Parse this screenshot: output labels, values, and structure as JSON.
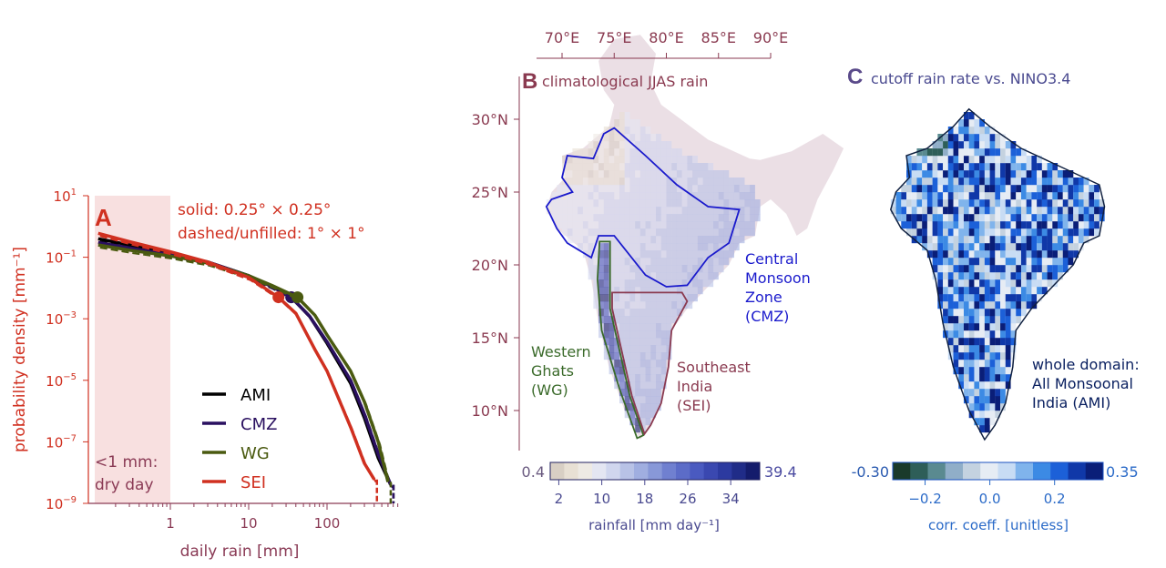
{
  "chart_data": [
    {
      "type": "line",
      "panel_label": "A",
      "xlabel": "daily rain [mm]",
      "ylabel": "probability density [mm⁻¹]",
      "xscale": "log",
      "yscale": "log",
      "xlim": [
        0.1,
        800
      ],
      "ylim": [
        1e-09,
        10
      ],
      "xticks": [
        {
          "v": 1,
          "label": "1"
        },
        {
          "v": 10,
          "label": "10"
        },
        {
          "v": 100,
          "label": "100"
        }
      ],
      "yticks": [
        {
          "v": 1,
          "label": "10",
          "exp": "1"
        },
        {
          "v": -1,
          "label": "10",
          "exp": "−1"
        },
        {
          "v": -3,
          "label": "10",
          "exp": "−3"
        },
        {
          "v": -5,
          "label": "10",
          "exp": "−5"
        },
        {
          "v": -7,
          "label": "10",
          "exp": "−7"
        },
        {
          "v": -9,
          "label": "10",
          "exp": "−9"
        }
      ],
      "annotation_top": [
        "solid: 0.25° × 0.25°",
        "dashed/unfilled: 1° × 1°"
      ],
      "shade": {
        "x": [
          0.1,
          1
        ],
        "label": [
          "<1 mm:",
          "dry day"
        ],
        "color": "#f8e0e0"
      },
      "legend_placement": "center",
      "series": [
        {
          "name": "AMI",
          "color": "#000000",
          "x": [
            0.12,
            0.3,
            1,
            3,
            10,
            20,
            35,
            60,
            100,
            200,
            300,
            450,
            650
          ],
          "y": [
            0.4,
            0.25,
            0.13,
            0.07,
            0.025,
            0.011,
            0.005,
            0.0012,
            0.00016,
            8e-06,
            6e-07,
            3e-08,
            4e-09
          ],
          "cutoff": [
            35,
            0.005
          ]
        },
        {
          "name": "CMZ",
          "color": "#2a1060",
          "x": [
            0.12,
            0.3,
            1,
            3,
            10,
            20,
            35,
            60,
            100,
            200,
            300,
            450,
            650
          ],
          "y": [
            0.3,
            0.2,
            0.12,
            0.07,
            0.025,
            0.011,
            0.005,
            0.0012,
            0.00018,
            1e-05,
            8e-07,
            4e-08,
            4e-09
          ],
          "cutoff": [
            35,
            0.005
          ]
        },
        {
          "name": "WG",
          "color": "#4a5a10",
          "x": [
            0.12,
            0.3,
            1,
            3,
            10,
            20,
            42,
            70,
            100,
            200,
            300,
            450,
            600
          ],
          "y": [
            0.25,
            0.17,
            0.11,
            0.065,
            0.025,
            0.012,
            0.005,
            0.0013,
            0.0003,
            2e-05,
            2e-06,
            1e-07,
            5e-09
          ],
          "cutoff": [
            42,
            0.005
          ]
        },
        {
          "name": "SEI",
          "color": "#d03020",
          "x": [
            0.12,
            0.3,
            1,
            3,
            10,
            24,
            40,
            70,
            100,
            200,
            300,
            400
          ],
          "y": [
            0.6,
            0.32,
            0.15,
            0.07,
            0.022,
            0.005,
            0.0015,
            0.0001,
            2e-05,
            3e-07,
            2e-08,
            6e-09
          ],
          "cutoff": [
            24,
            0.005
          ]
        }
      ]
    },
    {
      "type": "heatmap",
      "panel_label": "B",
      "title": "climatological JJAS rain",
      "lon_ticks": [
        {
          "v": 70,
          "label": "70°E"
        },
        {
          "v": 75,
          "label": "75°E"
        },
        {
          "v": 80,
          "label": "80°E"
        },
        {
          "v": 85,
          "label": "85°E"
        },
        {
          "v": 90,
          "label": "90°E"
        }
      ],
      "lat_ticks": [
        {
          "v": 30,
          "label": "30°N"
        },
        {
          "v": 25,
          "label": "25°N"
        },
        {
          "v": 20,
          "label": "20°N"
        },
        {
          "v": 15,
          "label": "15°N"
        },
        {
          "v": 10,
          "label": "10°N"
        }
      ],
      "regions": [
        {
          "name": "CMZ",
          "label": [
            "Central",
            "Monsoon",
            "Zone",
            "(CMZ)"
          ],
          "color": "#1a1acc"
        },
        {
          "name": "WG",
          "label": [
            "Western",
            "Ghats",
            "(WG)"
          ],
          "color": "#3a6a2a"
        },
        {
          "name": "SEI",
          "label": [
            "Southeast",
            "India",
            "(SEI)"
          ],
          "color": "#8a3a50"
        }
      ],
      "colorbar": {
        "min": 0.4,
        "max": 39.4,
        "min_label": "0.4",
        "max_label": "39.4",
        "ticks": [
          2,
          10,
          18,
          26,
          34
        ],
        "label": "rainfall [mm day⁻¹]",
        "colors": [
          "#d8cfc4",
          "#e8e0d4",
          "#eeeae4",
          "#e4e6f2",
          "#d0d6ee",
          "#b8c2e6",
          "#a0aee0",
          "#8898d8",
          "#7080d0",
          "#5c6cc8",
          "#4a5ac0",
          "#3a48b0",
          "#2c3aa0",
          "#202c88",
          "#141c6c"
        ]
      }
    },
    {
      "type": "heatmap",
      "panel_label": "C",
      "title": "cutoff rain rate vs. NINO3.4",
      "annotation": [
        "whole domain:",
        "All Monsoonal",
        "India (AMI)"
      ],
      "colorbar": {
        "min": -0.3,
        "max": 0.35,
        "min_label": "-0.30",
        "max_label": "0.35",
        "ticks": [
          {
            "v": -0.2,
            "label": "−0.2"
          },
          {
            "v": 0,
            "label": "0.0"
          },
          {
            "v": 0.2,
            "label": "0.2"
          }
        ],
        "label": "corr. coeff. [unitless]",
        "colors": [
          "#1a3a2a",
          "#2e5e58",
          "#5a8a90",
          "#90aec8",
          "#c4d2e0",
          "#e6ecf4",
          "#c8dcf4",
          "#80b4ec",
          "#3c8ae4",
          "#1c60d8",
          "#1038a8",
          "#0a1e78"
        ]
      }
    }
  ]
}
